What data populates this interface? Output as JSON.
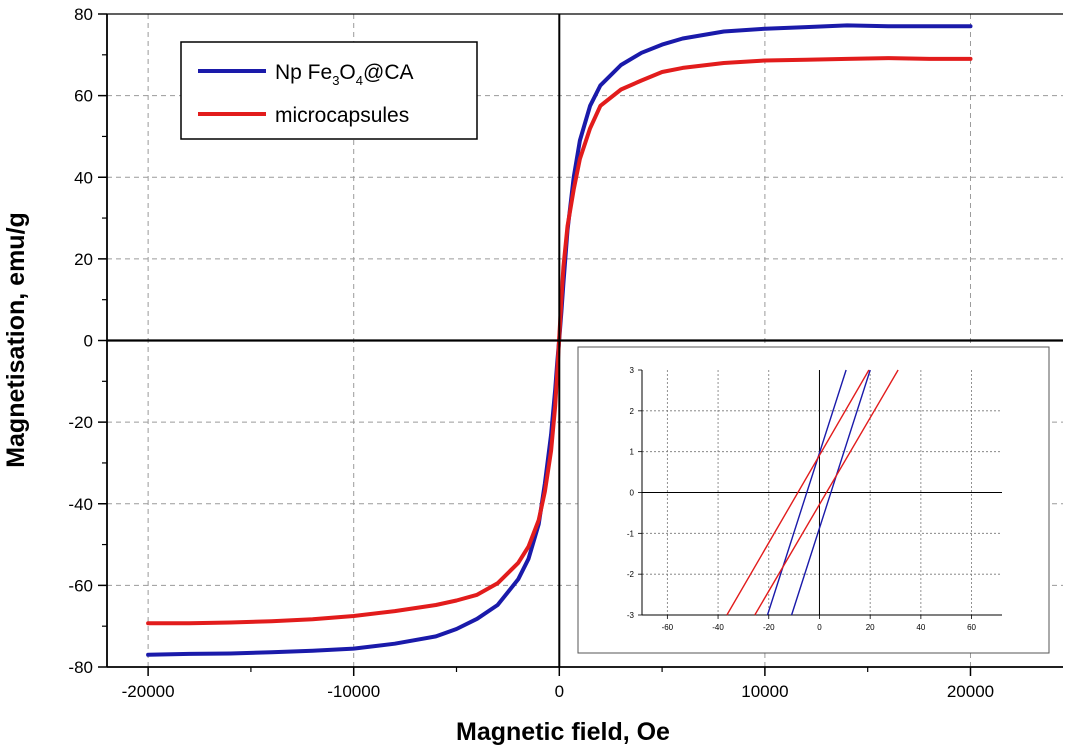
{
  "chart_data": [
    {
      "type": "line",
      "title": "",
      "xlabel": "Magnetic field, Oe",
      "ylabel": "Magnetisation, emu/g",
      "xlim": [
        -22000,
        24500
      ],
      "ylim": [
        -80,
        80
      ],
      "xticks": [
        -20000,
        -10000,
        0,
        10000,
        20000
      ],
      "xtick_labels": [
        "-20000",
        "-10000",
        "0",
        "10000",
        "20000"
      ],
      "yticks": [
        -80,
        -60,
        -40,
        -20,
        0,
        20,
        40,
        60,
        80
      ],
      "ytick_labels": [
        "-80",
        "-60",
        "-40",
        "-20",
        "0",
        "20",
        "40",
        "60",
        "80"
      ],
      "grid": true,
      "legend": {
        "position": "top-left",
        "entries": [
          {
            "name": "Np Fe3O4@CA",
            "text_parts": [
              "Np Fe",
              "3",
              "O",
              "4",
              "@CA"
            ],
            "color": "#1a1aaa"
          },
          {
            "name": "microcapsules",
            "text_parts": [
              "microcapsules"
            ],
            "color": "#e21c1c"
          }
        ]
      },
      "series": [
        {
          "name": "Np Fe3O4@CA",
          "color": "#1a1aaa",
          "x": [
            -20000,
            -18000,
            -16000,
            -14000,
            -12000,
            -10000,
            -8000,
            -6000,
            -5000,
            -4000,
            -3000,
            -2000,
            -1500,
            -1000,
            -700,
            -400,
            -200,
            -100,
            0,
            100,
            200,
            400,
            700,
            1000,
            1500,
            2000,
            3000,
            4000,
            5000,
            6000,
            8000,
            10000,
            12000,
            14000,
            16000,
            18000,
            20000
          ],
          "y": [
            -77,
            -76.8,
            -76.7,
            -76.4,
            -76,
            -75.5,
            -74.3,
            -72.5,
            -70.7,
            -68.2,
            -64.8,
            -58.5,
            -53.5,
            -45,
            -35,
            -23,
            -12,
            -5.5,
            0.5,
            7,
            14,
            27,
            40,
            49,
            57.5,
            62.5,
            67.5,
            70.5,
            72.5,
            74,
            75.7,
            76.4,
            76.8,
            77.2,
            77,
            77,
            77
          ]
        },
        {
          "name": "microcapsules",
          "color": "#e21c1c",
          "x": [
            -20000,
            -18000,
            -16000,
            -14000,
            -12000,
            -10000,
            -8000,
            -6000,
            -5000,
            -4000,
            -3000,
            -2000,
            -1500,
            -1000,
            -700,
            -400,
            -200,
            -100,
            0,
            100,
            200,
            400,
            700,
            1000,
            1500,
            2000,
            3000,
            4000,
            5000,
            6000,
            8000,
            10000,
            12000,
            14000,
            16000,
            18000,
            20000
          ],
          "y": [
            -69.3,
            -69.3,
            -69.1,
            -68.8,
            -68.3,
            -67.5,
            -66.3,
            -64.8,
            -63.7,
            -62.3,
            -59.5,
            -54.5,
            -50.5,
            -44,
            -37,
            -27,
            -16,
            -8,
            1,
            10,
            18,
            28,
            37,
            44.5,
            52,
            57.5,
            61.5,
            63.7,
            65.8,
            66.8,
            68,
            68.6,
            68.8,
            69,
            69.2,
            69,
            69
          ]
        }
      ]
    },
    {
      "type": "line",
      "title": "",
      "xlabel": "",
      "ylabel": "",
      "xlim": [
        -70,
        72
      ],
      "ylim": [
        -3,
        3
      ],
      "xticks": [
        -60,
        -40,
        -20,
        0,
        20,
        40,
        60
      ],
      "xtick_labels": [
        "-60",
        "-40",
        "-20",
        "0",
        "20",
        "40",
        "60"
      ],
      "yticks": [
        -3,
        -2,
        -1,
        0,
        1,
        2,
        3
      ],
      "ytick_labels": [
        "-3",
        "-2",
        "-1",
        "0",
        "1",
        "2",
        "3"
      ],
      "grid": true,
      "series": [
        {
          "name": "Np Fe3O4@CA (branch 1)",
          "color": "#1a1aaa",
          "x": [
            -20.5,
            10.5
          ],
          "y": [
            -3,
            3
          ]
        },
        {
          "name": "Np Fe3O4@CA (branch 2)",
          "color": "#1a1aaa",
          "x": [
            -11,
            20
          ],
          "y": [
            -3,
            3
          ]
        },
        {
          "name": "microcapsules (branch 1)",
          "color": "#e21c1c",
          "x": [
            -36.5,
            19.5
          ],
          "y": [
            -3,
            3
          ]
        },
        {
          "name": "microcapsules (branch 2)",
          "color": "#e21c1c",
          "x": [
            -25.5,
            31
          ],
          "y": [
            -3,
            3
          ]
        }
      ]
    }
  ]
}
